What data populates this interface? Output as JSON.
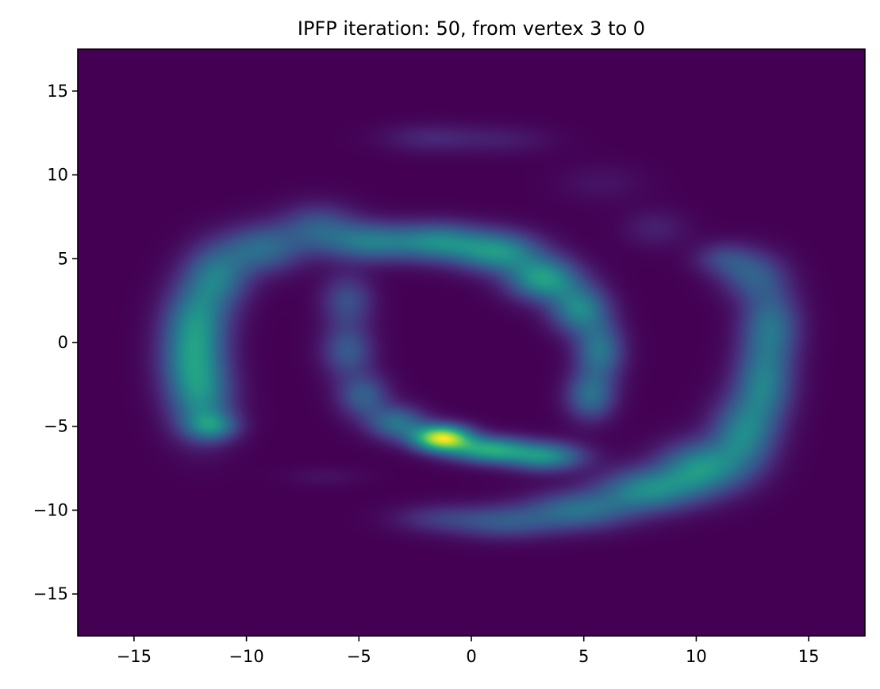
{
  "chart_data": {
    "type": "heatmap",
    "title": "IPFP iteration: 50, from vertex 3 to 0",
    "xlabel": "",
    "ylabel": "",
    "xlim": [
      -17.5,
      17.5
    ],
    "ylim": [
      -17.5,
      17.5
    ],
    "xticks": [
      -15,
      -10,
      -5,
      0,
      5,
      10,
      15
    ],
    "yticks": [
      -15,
      -10,
      -5,
      0,
      5,
      10,
      15
    ],
    "xtick_labels": [
      "−15",
      "−10",
      "−5",
      "0",
      "5",
      "10",
      "15"
    ],
    "ytick_labels": [
      "−15",
      "−10",
      "−5",
      "0",
      "5",
      "10",
      "15"
    ],
    "colormap": "viridis",
    "background_color": "#440154",
    "grid": false,
    "density_blobs": [
      {
        "x": -12.0,
        "y": -3.5,
        "sx": 1.0,
        "sy": 1.6,
        "w": 0.42
      },
      {
        "x": -12.4,
        "y": -1.0,
        "sx": 1.0,
        "sy": 1.6,
        "w": 0.42
      },
      {
        "x": -12.2,
        "y": 1.5,
        "sx": 1.0,
        "sy": 1.5,
        "w": 0.4
      },
      {
        "x": -11.3,
        "y": 4.0,
        "sx": 1.0,
        "sy": 1.3,
        "w": 0.4
      },
      {
        "x": -9.3,
        "y": 5.6,
        "sx": 1.2,
        "sy": 1.0,
        "w": 0.36
      },
      {
        "x": -6.8,
        "y": 6.8,
        "sx": 1.2,
        "sy": 1.0,
        "w": 0.3
      },
      {
        "x": -11.5,
        "y": -5.0,
        "sx": 0.8,
        "sy": 0.6,
        "w": 0.35
      },
      {
        "x": -4.5,
        "y": 6.0,
        "sx": 1.3,
        "sy": 0.8,
        "w": 0.4
      },
      {
        "x": -1.5,
        "y": 6.0,
        "sx": 1.4,
        "sy": 0.8,
        "w": 0.48
      },
      {
        "x": 1.2,
        "y": 5.4,
        "sx": 1.3,
        "sy": 0.85,
        "w": 0.52
      },
      {
        "x": 3.2,
        "y": 3.8,
        "sx": 1.1,
        "sy": 0.9,
        "w": 0.58
      },
      {
        "x": 4.8,
        "y": 2.0,
        "sx": 0.9,
        "sy": 1.0,
        "w": 0.48
      },
      {
        "x": 5.7,
        "y": -0.5,
        "sx": 0.75,
        "sy": 1.2,
        "w": 0.42
      },
      {
        "x": 5.3,
        "y": -3.2,
        "sx": 0.75,
        "sy": 1.0,
        "w": 0.38
      },
      {
        "x": -5.5,
        "y": 2.5,
        "sx": 0.8,
        "sy": 1.1,
        "w": 0.26
      },
      {
        "x": -5.5,
        "y": -0.5,
        "sx": 0.8,
        "sy": 1.1,
        "w": 0.3
      },
      {
        "x": -4.8,
        "y": -3.2,
        "sx": 0.8,
        "sy": 0.9,
        "w": 0.32
      },
      {
        "x": -3.3,
        "y": -4.8,
        "sx": 0.9,
        "sy": 0.7,
        "w": 0.4
      },
      {
        "x": -1.3,
        "y": -5.7,
        "sx": 0.9,
        "sy": 0.55,
        "w": 1.0
      },
      {
        "x": 0.8,
        "y": -6.4,
        "sx": 1.2,
        "sy": 0.55,
        "w": 0.62
      },
      {
        "x": 3.3,
        "y": -6.8,
        "sx": 1.2,
        "sy": 0.6,
        "w": 0.52
      },
      {
        "x": 13.3,
        "y": 1.0,
        "sx": 0.9,
        "sy": 1.6,
        "w": 0.4
      },
      {
        "x": 13.0,
        "y": -2.5,
        "sx": 0.9,
        "sy": 1.6,
        "w": 0.42
      },
      {
        "x": 12.1,
        "y": -5.5,
        "sx": 1.0,
        "sy": 1.5,
        "w": 0.45
      },
      {
        "x": 10.2,
        "y": -7.5,
        "sx": 1.3,
        "sy": 1.1,
        "w": 0.52
      },
      {
        "x": 7.8,
        "y": -8.8,
        "sx": 1.5,
        "sy": 0.9,
        "w": 0.48
      },
      {
        "x": 4.8,
        "y": -10.0,
        "sx": 1.6,
        "sy": 0.8,
        "w": 0.38
      },
      {
        "x": 1.5,
        "y": -10.7,
        "sx": 1.6,
        "sy": 0.7,
        "w": 0.28
      },
      {
        "x": -1.5,
        "y": -10.5,
        "sx": 1.4,
        "sy": 0.6,
        "w": 0.16
      },
      {
        "x": 12.5,
        "y": 4.0,
        "sx": 1.0,
        "sy": 1.0,
        "w": 0.28
      },
      {
        "x": 11.2,
        "y": 5.0,
        "sx": 0.9,
        "sy": 0.7,
        "w": 0.2
      },
      {
        "x": -1.8,
        "y": 12.2,
        "sx": 1.5,
        "sy": 0.6,
        "w": 0.12
      },
      {
        "x": 1.5,
        "y": 12.1,
        "sx": 1.5,
        "sy": 0.6,
        "w": 0.08
      },
      {
        "x": 5.8,
        "y": 9.5,
        "sx": 1.3,
        "sy": 0.8,
        "w": 0.06
      },
      {
        "x": 8.2,
        "y": 6.8,
        "sx": 1.0,
        "sy": 0.8,
        "w": 0.1
      },
      {
        "x": -6.5,
        "y": -8.0,
        "sx": 1.2,
        "sy": 0.4,
        "w": 0.05
      }
    ]
  }
}
